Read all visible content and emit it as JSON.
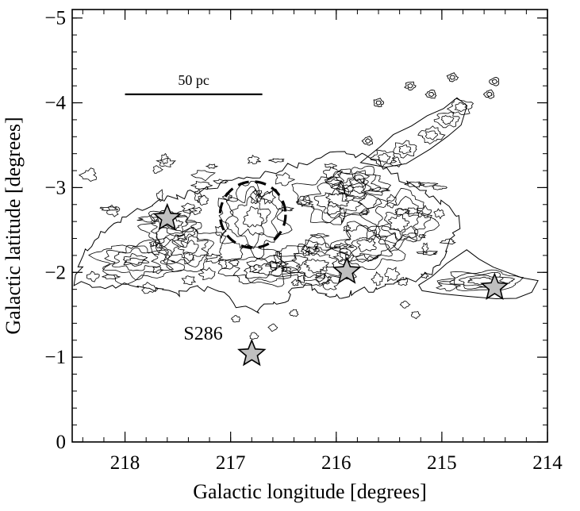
{
  "chart_data": {
    "type": "scatter",
    "xlabel": "Galactic longitude [degrees]",
    "ylabel": "Galactic latitude [degrees]",
    "xlim": [
      218.5,
      214.0
    ],
    "ylim": [
      -5.1,
      0.0
    ],
    "x_reversed": true,
    "xticks": [
      218,
      217,
      216,
      215,
      214
    ],
    "yticks": [
      0,
      -1,
      -2,
      -3,
      -4,
      -5
    ],
    "grid": false,
    "annotations": [
      {
        "text": "S286",
        "x": 217.26,
        "y": -1.28
      },
      {
        "text": "50 pc",
        "x": 217.2,
        "y": -3.9
      }
    ],
    "scale_bar": {
      "label": "50 pc",
      "x_start": 218.0,
      "x_end": 216.7,
      "y": -4.1
    },
    "stars": [
      {
        "x": 216.8,
        "y": -1.04
      },
      {
        "x": 215.9,
        "y": -2.01
      },
      {
        "x": 214.5,
        "y": -1.82
      },
      {
        "x": 217.6,
        "y": -2.64
      }
    ],
    "dashed_circle": {
      "center_x": 216.79,
      "center_y": -2.68,
      "radius_x": 0.31,
      "radius_y": 0.39
    },
    "contour_regions": [
      {
        "name": "main-cloud",
        "center_x": 216.5,
        "center_y": -2.55,
        "extent_x": [
          218.45,
          214.7
        ],
        "extent_y": [
          -3.5,
          -1.55
        ]
      },
      {
        "name": "southern-filament",
        "center_x": 215.1,
        "center_y": -3.8,
        "extent_x": [
          215.7,
          214.6
        ],
        "extent_y": [
          -4.3,
          -3.3
        ]
      },
      {
        "name": "northeast-clump",
        "center_x": 214.65,
        "center_y": -1.95,
        "extent_x": [
          215.25,
          214.1
        ],
        "extent_y": [
          -2.25,
          -1.7
        ]
      }
    ],
    "colors": {
      "star_fill": "#bfbfbf",
      "star_edge": "#000000",
      "contour": "#000000",
      "background": "#ffffff"
    }
  }
}
